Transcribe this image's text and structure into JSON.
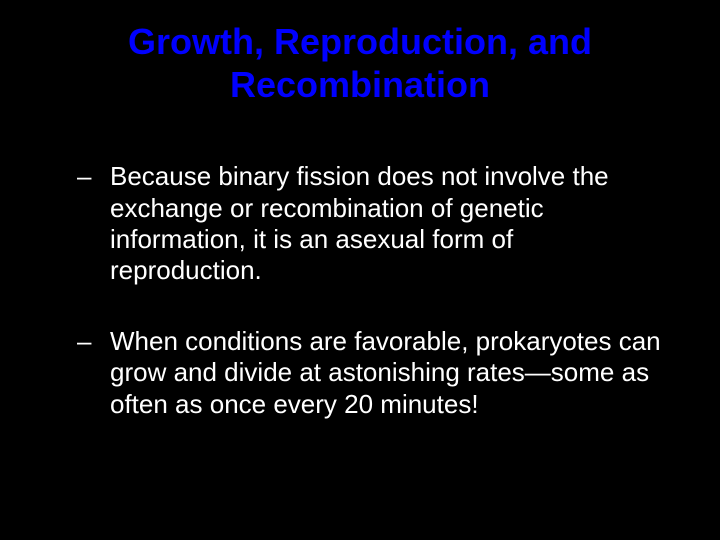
{
  "slide": {
    "background_color": "#000000",
    "title": {
      "text": "Growth, Reproduction, and Recombination",
      "color": "#0000ff",
      "font_size": 36,
      "font_weight": "bold",
      "text_align": "center"
    },
    "bullets": [
      {
        "marker": "–",
        "text": "Because binary fission does not involve the exchange or recombination of genetic information, it is an asexual form of reproduction."
      },
      {
        "marker": "–",
        "text": "When conditions are favorable, prokaryotes can grow and divide at astonishing rates—some as often as once every 20 minutes!"
      }
    ],
    "bullet_style": {
      "color": "#ffffff",
      "font_size": 26,
      "line_height": 1.2
    }
  }
}
